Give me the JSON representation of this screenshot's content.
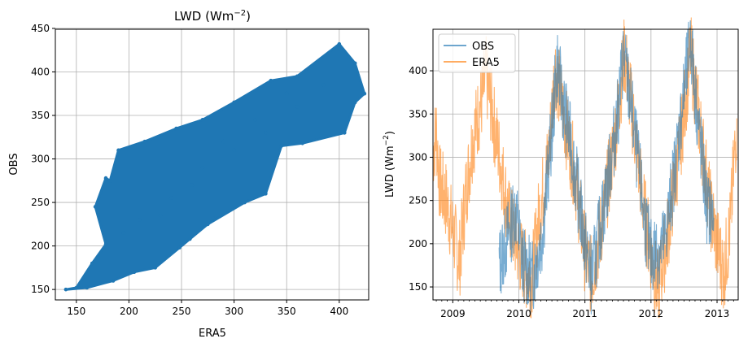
{
  "chart_data": [
    {
      "type": "scatter",
      "title_main": "LWD (Wm",
      "title_sup": "−2",
      "title_close": ")",
      "xlabel": "ERA5",
      "ylabel": "OBS",
      "xlim": [
        130,
        428
      ],
      "ylim": [
        138,
        449
      ],
      "xticks": [
        "150",
        "200",
        "250",
        "300",
        "350",
        "400"
      ],
      "yticks": [
        "150",
        "200",
        "250",
        "300",
        "350",
        "400",
        "450"
      ],
      "grid": true,
      "color": "#1f77b4",
      "series": [
        {
          "points": [
            [
              140,
              150
            ],
            [
              150,
              152
            ],
            [
              165,
              180
            ],
            [
              178,
              202
            ],
            [
              168,
              245
            ],
            [
              178,
              278
            ],
            [
              182,
              275
            ],
            [
              190,
              310
            ],
            [
              215,
              320
            ],
            [
              245,
              335
            ],
            [
              270,
              345
            ],
            [
              300,
              365
            ],
            [
              335,
              390
            ],
            [
              360,
              395
            ],
            [
              400,
              432
            ],
            [
              415,
              410
            ],
            [
              424,
              375
            ],
            [
              415,
              365
            ],
            [
              405,
              330
            ],
            [
              365,
              318
            ],
            [
              345,
              315
            ],
            [
              330,
              260
            ],
            [
              310,
              250
            ],
            [
              275,
              225
            ],
            [
              258,
              208
            ],
            [
              248,
              198
            ],
            [
              225,
              175
            ],
            [
              205,
              170
            ],
            [
              185,
              160
            ],
            [
              160,
              152
            ],
            [
              210,
              230
            ],
            [
              240,
              255
            ],
            [
              270,
              290
            ],
            [
              300,
              310
            ],
            [
              330,
              330
            ],
            [
              360,
              360
            ],
            [
              385,
              385
            ],
            [
              260,
              270
            ],
            [
              230,
              235
            ],
            [
              290,
              320
            ],
            [
              320,
              345
            ],
            [
              350,
              375
            ],
            [
              195,
              215
            ],
            [
              280,
              232
            ]
          ]
        }
      ]
    },
    {
      "type": "line",
      "xlabel": "",
      "ylabel_main": "LWD (Wm",
      "ylabel_sup": "−2",
      "ylabel_close": ")",
      "xlim": [
        2008.7,
        2013.32
      ],
      "ylim": [
        135,
        448
      ],
      "xticks": [
        "2009",
        "2010",
        "2011",
        "2012",
        "2013"
      ],
      "yticks": [
        "150",
        "200",
        "250",
        "300",
        "350",
        "400"
      ],
      "grid": true,
      "legend": {
        "position": "top-left",
        "entries": [
          "OBS",
          "ERA5"
        ]
      },
      "series": [
        {
          "name": "OBS",
          "color": "#1f77b4",
          "points": [
            [
              2009.7,
              175
            ],
            [
              2009.95,
              240
            ],
            [
              2010.05,
              180
            ],
            [
              2010.2,
              160
            ],
            [
              2010.35,
              210
            ],
            [
              2010.5,
              330
            ],
            [
              2010.58,
              410
            ],
            [
              2010.65,
              370
            ],
            [
              2010.8,
              310
            ],
            [
              2011.0,
              200
            ],
            [
              2011.1,
              160
            ],
            [
              2011.3,
              250
            ],
            [
              2011.5,
              350
            ],
            [
              2011.58,
              420
            ],
            [
              2011.7,
              360
            ],
            [
              2011.9,
              230
            ],
            [
              2012.0,
              185
            ],
            [
              2012.2,
              200
            ],
            [
              2012.35,
              280
            ],
            [
              2012.5,
              375
            ],
            [
              2012.6,
              435
            ],
            [
              2012.7,
              350
            ],
            [
              2012.85,
              240
            ],
            [
              2012.95,
              230
            ]
          ]
        },
        {
          "name": "ERA5",
          "color": "#ff7f0e",
          "points": [
            [
              2008.7,
              305
            ],
            [
              2008.75,
              330
            ],
            [
              2008.8,
              270
            ],
            [
              2008.9,
              250
            ],
            [
              2009.0,
              215
            ],
            [
              2009.1,
              180
            ],
            [
              2009.2,
              260
            ],
            [
              2009.3,
              320
            ],
            [
              2009.45,
              370
            ],
            [
              2009.5,
              395
            ],
            [
              2009.6,
              350
            ],
            [
              2009.75,
              280
            ],
            [
              2009.85,
              230
            ],
            [
              2010.0,
              190
            ],
            [
              2010.1,
              170
            ],
            [
              2010.2,
              160
            ],
            [
              2010.3,
              230
            ],
            [
              2010.45,
              300
            ],
            [
              2010.55,
              405
            ],
            [
              2010.7,
              340
            ],
            [
              2010.85,
              280
            ],
            [
              2011.0,
              190
            ],
            [
              2011.1,
              160
            ],
            [
              2011.25,
              220
            ],
            [
              2011.45,
              320
            ],
            [
              2011.6,
              420
            ],
            [
              2011.75,
              330
            ],
            [
              2011.9,
              235
            ],
            [
              2012.0,
              190
            ],
            [
              2012.1,
              145
            ],
            [
              2012.25,
              210
            ],
            [
              2012.45,
              320
            ],
            [
              2012.6,
              420
            ],
            [
              2012.75,
              330
            ],
            [
              2012.9,
              240
            ],
            [
              2013.0,
              200
            ],
            [
              2013.1,
              165
            ],
            [
              2013.2,
              220
            ],
            [
              2013.3,
              345
            ]
          ]
        }
      ]
    }
  ]
}
